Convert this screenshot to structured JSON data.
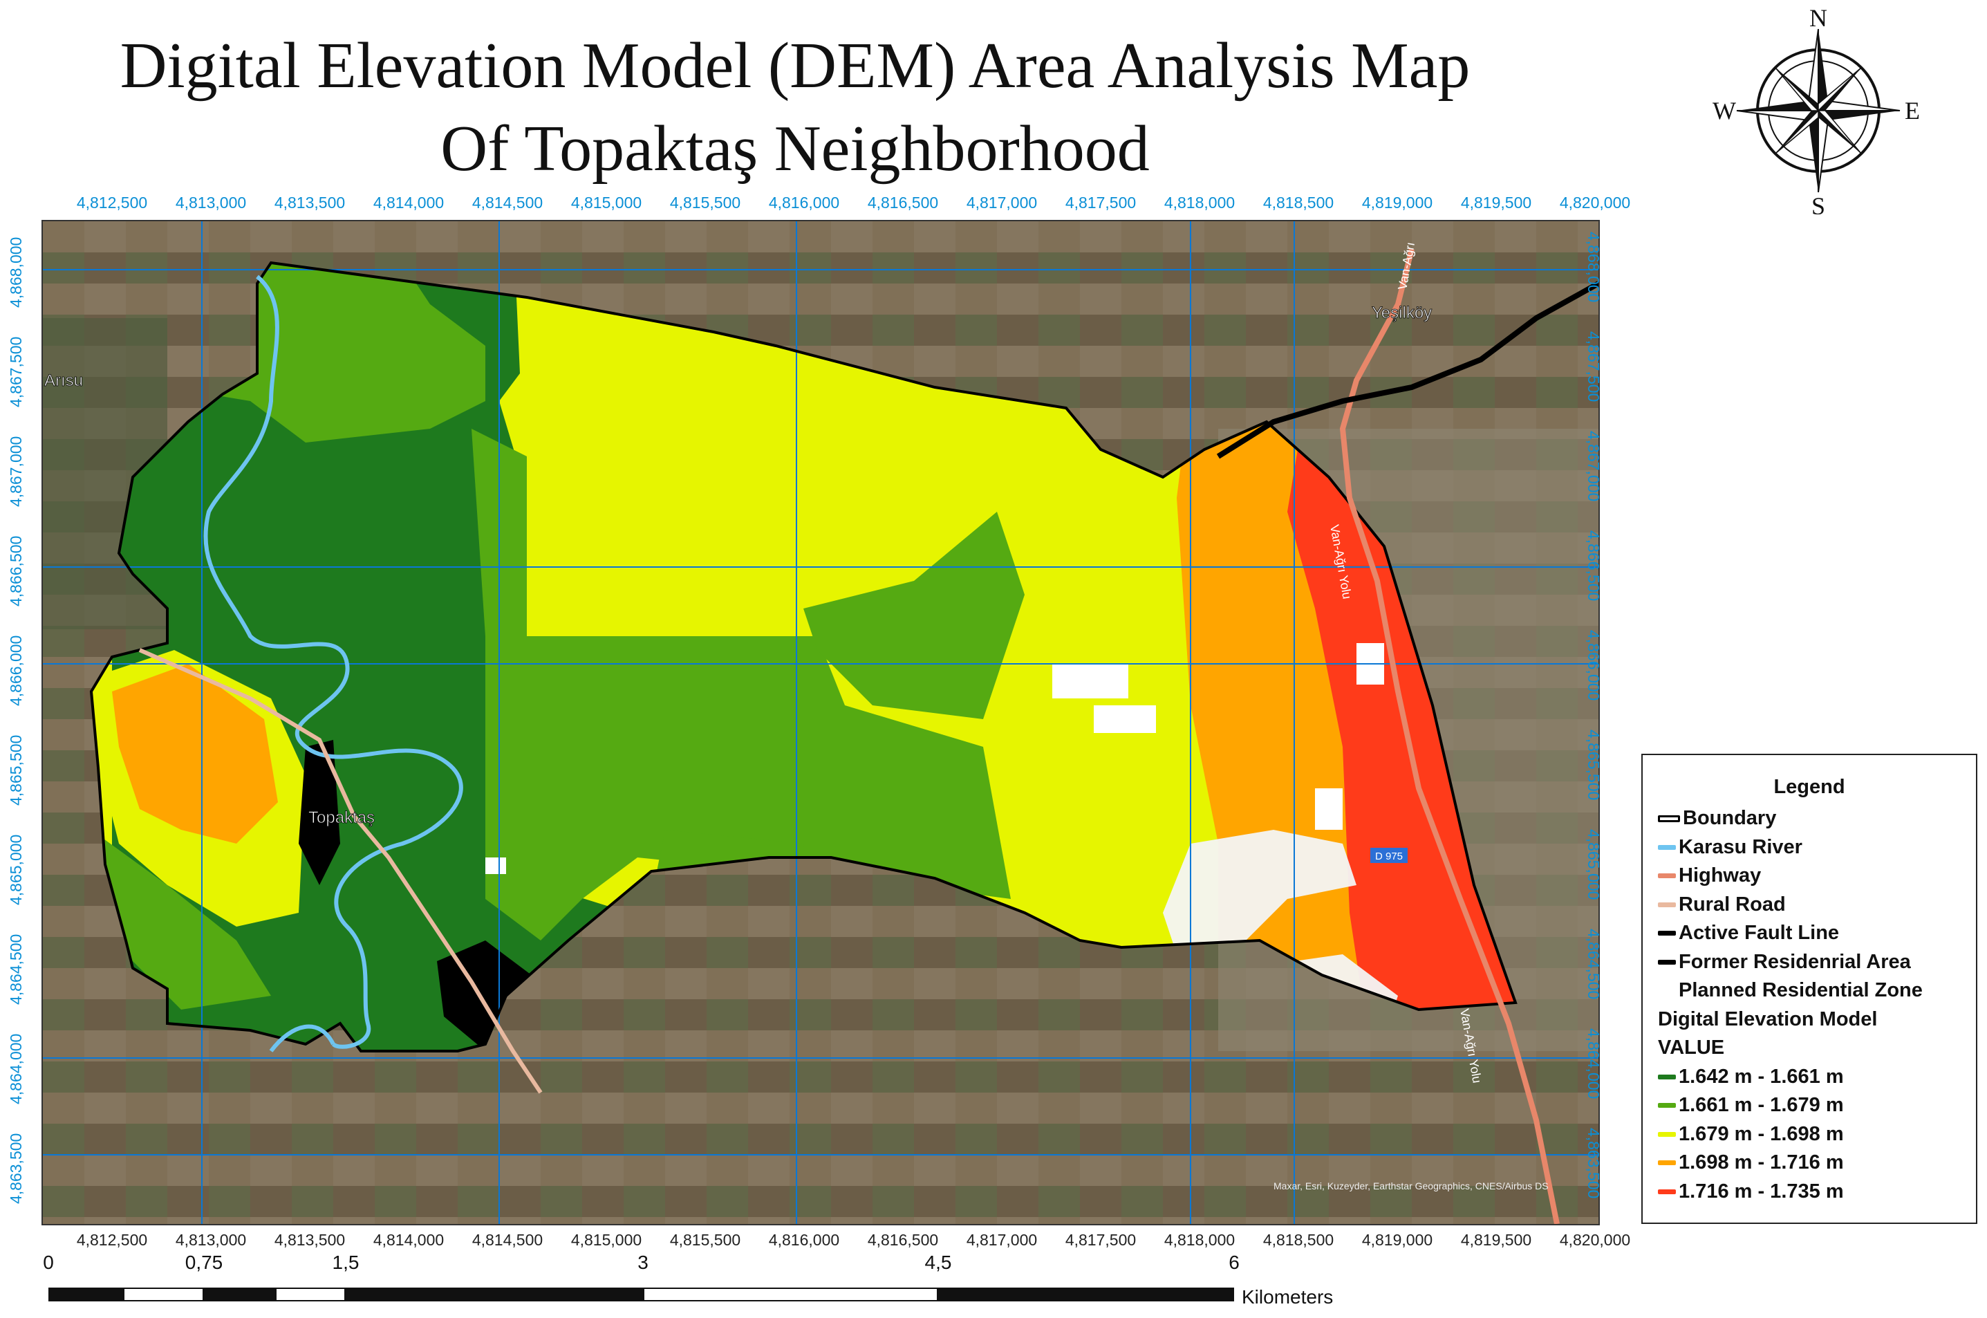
{
  "title": {
    "line1": "Digital Elevation Model (DEM) Area Analysis Map",
    "line2": "Of Topaktaş Neighborhood"
  },
  "compass": {
    "n": "N",
    "s": "S",
    "e": "E",
    "w": "W",
    "icon": "compass-rose-icon"
  },
  "axes": {
    "x_ticks": [
      "4,812,500",
      "4,813,000",
      "4,813,500",
      "4,814,000",
      "4,814,500",
      "4,815,000",
      "4,815,500",
      "4,816,000",
      "4,816,500",
      "4,817,000",
      "4,817,500",
      "4,818,000",
      "4,818,500",
      "4,819,000",
      "4,819,500",
      "4,820,000"
    ],
    "y_ticks": [
      "4,868,000",
      "4,867,500",
      "4,867,000",
      "4,866,500",
      "4,866,000",
      "4,865,500",
      "4,865,000",
      "4,864,500",
      "4,864,000",
      "4,863,500"
    ]
  },
  "places": {
    "arisu": "Arısu",
    "yesilkoy": "Yeşilköy",
    "topaktas": "Topaktaş",
    "road_label_1": "Van-Ağrı",
    "road_label_2": "Van-Ağrı Yolu",
    "road_label_3": "Van-Ağrı Yolu",
    "highway_shield": "D 975",
    "attribution": "Maxar, Esri, Kuzeyder, Earthstar Geographics, CNES/Airbus DS"
  },
  "legend": {
    "title": "Legend",
    "items": [
      {
        "label": "Boundary",
        "color": "#000000"
      },
      {
        "label": "Karasu River",
        "color": "#6ec4f0"
      },
      {
        "label": "Highway",
        "color": "#e8876a"
      },
      {
        "label": "Rural Road",
        "color": "#e9b99f"
      },
      {
        "label": "Active Fault Line",
        "color": "#000000"
      },
      {
        "label": "Former Residenrial Area",
        "color": "#000000"
      },
      {
        "label": "Planned Residential Zone",
        "color": "none"
      }
    ],
    "dem_heading": "Digital Elevation Model",
    "value_heading": "VALUE",
    "classes": [
      {
        "label": "1.642 m - 1.661 m",
        "color": "#1e7a1e"
      },
      {
        "label": "1.661 m - 1.679 m",
        "color": "#55aa12"
      },
      {
        "label": "1.679 m  - 1.698 m",
        "color": "#e6f500"
      },
      {
        "label": "1.698 m  - 1.716 m",
        "color": "#ffa500"
      },
      {
        "label": "1.716 m - 1.735 m",
        "color": "#ff3b1a"
      }
    ]
  },
  "scale_bar": {
    "labels": [
      "0",
      "0,75",
      "1,5",
      "3",
      "4,5",
      "6"
    ],
    "unit": "Kilometers"
  }
}
